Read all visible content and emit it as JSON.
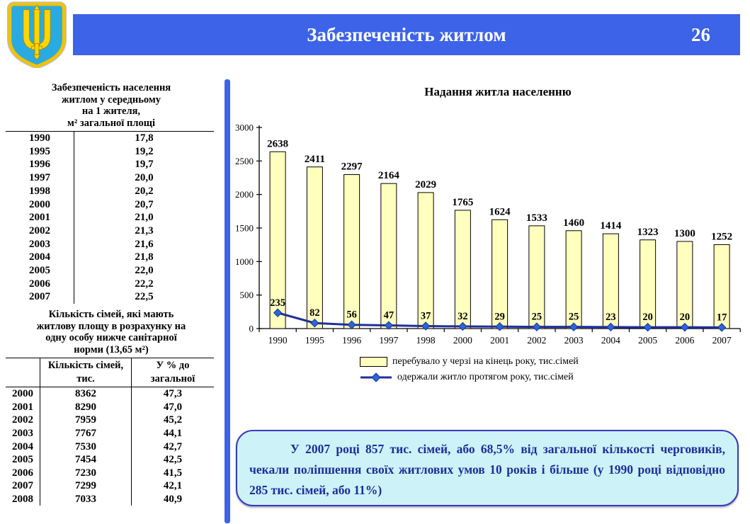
{
  "header": {
    "title": "Забезпеченість житлом",
    "page_number": "26"
  },
  "emblem": {
    "label": "ukraine-coat-of-arms",
    "shield_color": "#29ABE2",
    "trident_color": "#FFD500"
  },
  "left_panel": {
    "table1": {
      "title": "Забезпеченість населення\nжитлом у середньому\nна 1 жителя,\nм² загальної площі",
      "rows": [
        [
          "1990",
          "17,8"
        ],
        [
          "1995",
          "19,2"
        ],
        [
          "1996",
          "19,7"
        ],
        [
          "1997",
          "20,0"
        ],
        [
          "1998",
          "20,2"
        ],
        [
          "2000",
          "20,7"
        ],
        [
          "2001",
          "21,0"
        ],
        [
          "2002",
          "21,3"
        ],
        [
          "2003",
          "21,6"
        ],
        [
          "2004",
          "21,8"
        ],
        [
          "2005",
          "22,0"
        ],
        [
          "2006",
          "22,2"
        ],
        [
          "2007",
          "22,5"
        ]
      ]
    },
    "table2": {
      "title": "Кількість сімей, які мають\nжитлову площу в розрахунку на\nодну особу нижче санітарної\nнорми (13,65 м²)",
      "col_headers": [
        "Кількість сімей,\nтис.",
        "У % до\nзагальної"
      ],
      "rows": [
        [
          "2000",
          "8362",
          "47,3"
        ],
        [
          "2001",
          "8290",
          "47,0"
        ],
        [
          "2002",
          "7959",
          "45,2"
        ],
        [
          "2003",
          "7767",
          "44,1"
        ],
        [
          "2004",
          "7530",
          "42,7"
        ],
        [
          "2005",
          "7454",
          "42,5"
        ],
        [
          "2006",
          "7230",
          "41,5"
        ],
        [
          "2007",
          "7299",
          "42,1"
        ],
        [
          "2008",
          "7033",
          "40,9"
        ]
      ]
    }
  },
  "chart_data": {
    "type": "bar",
    "title": "Надання житла населенню",
    "categories": [
      "1990",
      "1995",
      "1996",
      "1997",
      "1998",
      "2000",
      "2001",
      "2002",
      "2003",
      "2004",
      "2005",
      "2006",
      "2007"
    ],
    "series": [
      {
        "name": "перебувало у черзі на кінець року, тис.сімей",
        "type": "bar",
        "color": "#FFFFBE",
        "values": [
          2638,
          2411,
          2297,
          2164,
          2029,
          1765,
          1624,
          1533,
          1460,
          1414,
          1323,
          1300,
          1252
        ]
      },
      {
        "name": "одержали житло протягом року, тис.сімей",
        "type": "line",
        "color": "#1F2F99",
        "marker": "diamond",
        "marker_color": "#2966DB",
        "label_color": "#3366FF",
        "values": [
          235,
          82,
          56,
          47,
          37,
          32,
          29,
          25,
          25,
          23,
          20,
          20,
          17
        ]
      }
    ],
    "ylim": [
      0,
      3000
    ],
    "yticks": [
      0,
      500,
      1000,
      1500,
      2000,
      2500,
      3000
    ],
    "grid": false,
    "legend_position": "bottom"
  },
  "note": {
    "text": "У 2007 році 857 тис. сімей, або 68,5% від загальної кількості черговиків, чекали поліпшення своїх житлових умов 10 років і більше (у 1990 році відповідно 285 тис. сімей, або 11%)"
  }
}
